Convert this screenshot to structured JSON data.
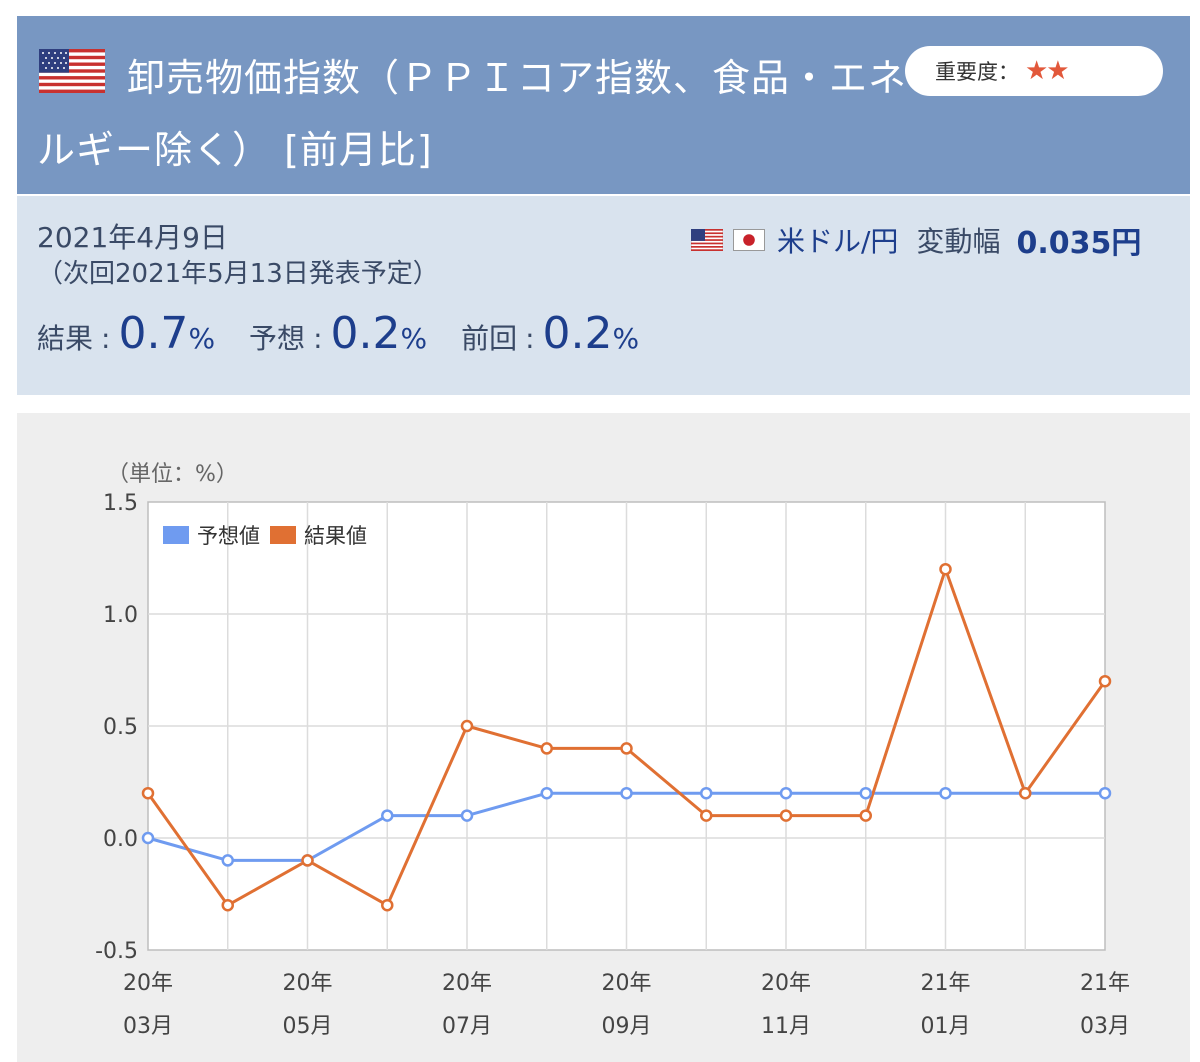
{
  "header": {
    "title": "卸売物価指数（ＰＰＩコア指数、食品・エネルギー除く） [前月比]",
    "importance_label": "重要度：",
    "importance_stars": "★★",
    "flag_icon": "us-flag-icon"
  },
  "info": {
    "date": "2021年4月9日",
    "next_release": "（次回2021年5月13日発表予定）",
    "result_label": "結果",
    "result_value": "0.7",
    "forecast_label": "予想",
    "forecast_value": "0.2",
    "previous_label": "前回",
    "previous_value": "0.2",
    "colon": ":",
    "unit": "%",
    "currency_pair": "米ドル/円",
    "range_label": "変動幅",
    "range_value": "0.035円"
  },
  "colors": {
    "header_bg": "#7897c2",
    "info_bg": "#d9e3ee",
    "forecast": "#6f9bf0",
    "result": "#e07033",
    "star": "#e2583b"
  },
  "chart_data": {
    "type": "line",
    "unit_label": "（単位：%）",
    "x": [
      "20年03月",
      "20年04月",
      "20年05月",
      "20年06月",
      "20年07月",
      "20年08月",
      "20年09月",
      "20年10月",
      "20年11月",
      "20年12月",
      "21年01月",
      "21年02月",
      "21年03月"
    ],
    "x_tick_labels": [
      {
        "year": "20年",
        "month": "03月"
      },
      {
        "year": "",
        "month": ""
      },
      {
        "year": "20年",
        "month": "05月"
      },
      {
        "year": "",
        "month": ""
      },
      {
        "year": "20年",
        "month": "07月"
      },
      {
        "year": "",
        "month": ""
      },
      {
        "year": "20年",
        "month": "09月"
      },
      {
        "year": "",
        "month": ""
      },
      {
        "year": "20年",
        "month": "11月"
      },
      {
        "year": "",
        "month": ""
      },
      {
        "year": "21年",
        "month": "01月"
      },
      {
        "year": "",
        "month": ""
      },
      {
        "year": "21年",
        "month": "03月"
      }
    ],
    "series": [
      {
        "name": "予想値",
        "color": "#6f9bf0",
        "values": [
          0.0,
          -0.1,
          -0.1,
          0.1,
          0.1,
          0.2,
          0.2,
          0.2,
          0.2,
          0.2,
          0.2,
          0.2,
          0.2
        ]
      },
      {
        "name": "結果値",
        "color": "#e07033",
        "values": [
          0.2,
          -0.3,
          -0.1,
          -0.3,
          0.5,
          0.4,
          0.4,
          0.1,
          0.1,
          0.1,
          1.2,
          0.2,
          0.7
        ]
      }
    ],
    "ylim": [
      -0.5,
      1.5
    ],
    "yticks": [
      "-0.5",
      "0.0",
      "0.5",
      "1.0",
      "1.5"
    ],
    "grid": true,
    "legend_position": "top-left"
  }
}
